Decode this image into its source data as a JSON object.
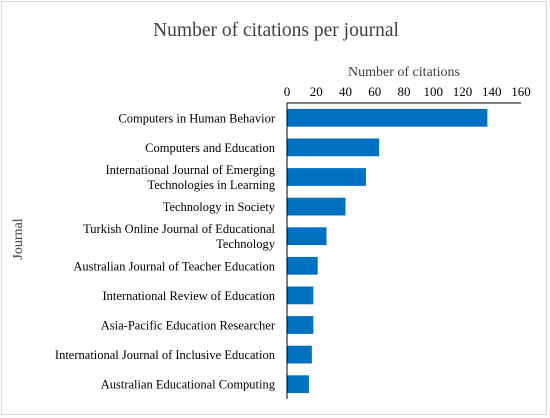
{
  "chart_data": {
    "type": "bar",
    "orientation": "horizontal",
    "title": "Number of citations per journal",
    "xlabel": "Number of citations",
    "ylabel": "Journal",
    "xlim": [
      0,
      160
    ],
    "x_ticks": [
      0,
      20,
      40,
      60,
      80,
      100,
      120,
      140,
      160
    ],
    "x_axis_position": "top",
    "grid": false,
    "legend": "none",
    "bar_color": "#0070c0",
    "categories": [
      [
        "Computers in Human Behavior"
      ],
      [
        "Computers and Education"
      ],
      [
        "International Journal of Emerging",
        "Technologies in Learning"
      ],
      [
        "Technology in Society"
      ],
      [
        "Turkish Online Journal of Educational",
        "Technology"
      ],
      [
        "Australian Journal of Teacher Education"
      ],
      [
        "International Review of Education"
      ],
      [
        "Asia-Pacific Education Researcher"
      ],
      [
        "International Journal of Inclusive Education"
      ],
      [
        "Australian Educational Computing"
      ]
    ],
    "values": [
      137,
      63,
      54,
      40,
      27,
      21,
      18,
      18,
      17,
      15
    ]
  }
}
